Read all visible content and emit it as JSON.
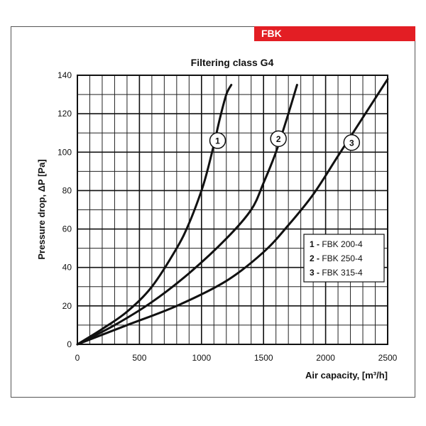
{
  "header": {
    "badge": "FBK"
  },
  "chart_data": {
    "type": "line",
    "title": "Filtering class  G4",
    "xlabel": "Air capacity, [m³/h]",
    "ylabel": "Pressure drop, ΔP [Pa]",
    "xlim": [
      0,
      2500
    ],
    "ylim": [
      0,
      140
    ],
    "x_ticks": [
      0,
      500,
      1000,
      1500,
      2000,
      2500
    ],
    "y_ticks": [
      0,
      20,
      40,
      60,
      80,
      100,
      120,
      140
    ],
    "x_minor_step": 100,
    "y_minor_step": 10,
    "grid": true,
    "legend": {
      "placement": "right",
      "entries": [
        {
          "num": "1 -",
          "label": "FBK 200-4"
        },
        {
          "num": "2 -",
          "label": "FBK 250-4"
        },
        {
          "num": "3 -",
          "label": "FBK 315-4"
        }
      ]
    },
    "series": [
      {
        "marker": "1",
        "marker_at": [
          1130,
          106
        ],
        "x": [
          0,
          200,
          400,
          600,
          800,
          900,
          1000,
          1050,
          1100,
          1150,
          1200,
          1240
        ],
        "y": [
          0,
          8,
          17,
          30,
          50,
          63,
          80,
          91,
          104,
          118,
          130,
          135
        ]
      },
      {
        "marker": "2",
        "marker_at": [
          1620,
          107
        ],
        "x": [
          0,
          300,
          600,
          900,
          1200,
          1400,
          1500,
          1600,
          1700,
          1770
        ],
        "y": [
          0,
          10,
          22,
          37,
          55,
          70,
          84,
          100,
          120,
          135
        ]
      },
      {
        "marker": "3",
        "marker_at": [
          2210,
          105
        ],
        "x": [
          0,
          400,
          800,
          1200,
          1500,
          1700,
          1900,
          2100,
          2300,
          2500
        ],
        "y": [
          0,
          10,
          20,
          33,
          48,
          62,
          78,
          98,
          118,
          138
        ]
      }
    ]
  }
}
